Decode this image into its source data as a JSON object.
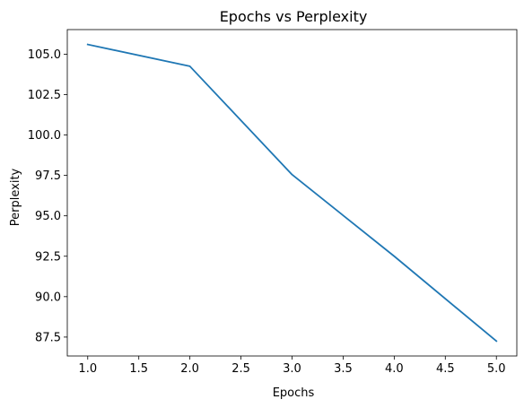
{
  "chart_data": {
    "type": "line",
    "title": "Epochs vs Perplexity",
    "xlabel": "Epochs",
    "ylabel": "Perplexity",
    "x": [
      1,
      2,
      3,
      4,
      5
    ],
    "series": [
      {
        "values": [
          105.6,
          104.25,
          97.55,
          92.5,
          87.25
        ],
        "color": "#1f77b4"
      }
    ],
    "xlim": [
      0.8,
      5.2
    ],
    "ylim": [
      86.33,
      106.52
    ],
    "xticks": [
      1.0,
      1.5,
      2.0,
      2.5,
      3.0,
      3.5,
      4.0,
      4.5,
      5.0
    ],
    "xtick_labels": [
      "1.0",
      "1.5",
      "2.0",
      "2.5",
      "3.0",
      "3.5",
      "4.0",
      "4.5",
      "5.0"
    ],
    "yticks": [
      87.5,
      90.0,
      92.5,
      95.0,
      97.5,
      100.0,
      102.5,
      105.0
    ],
    "ytick_labels": [
      "87.5",
      "90.0",
      "92.5",
      "95.0",
      "97.5",
      "100.0",
      "102.5",
      "105.0"
    ],
    "grid": false,
    "legend": "none"
  }
}
